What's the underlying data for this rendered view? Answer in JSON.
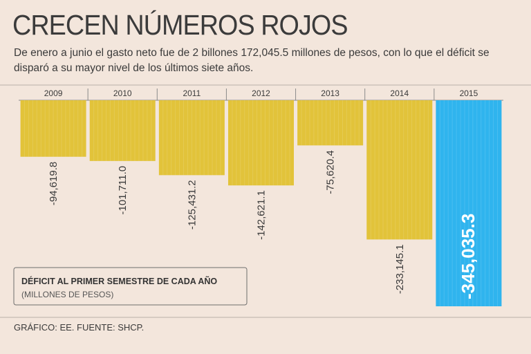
{
  "header": {
    "title": "CRECEN NÚMEROS ROJOS",
    "subtitle": "De enero a junio el gasto neto fue de 2 billones 172,045.5 millones de pesos, con lo que el déficit se disparó a su mayor nivel de los últimos siete años."
  },
  "legend": {
    "title": "DÉFICIT AL PRIMER SEMESTRE DE CADA AÑO",
    "units": "(MILLONES DE PESOS)"
  },
  "footer": {
    "source": "GRÁFICO: EE. FUENTE: SHCP."
  },
  "colors": {
    "background": "#f3e6dc",
    "bar": "#e2c33a",
    "highlight": "#2fb4ee",
    "axis": "#8a8a8a"
  },
  "chart_data": {
    "type": "bar",
    "title": "DÉFICIT AL PRIMER SEMESTRE DE CADA AÑO",
    "ylabel": "(MILLONES DE PESOS)",
    "categories": [
      "2009",
      "2010",
      "2011",
      "2012",
      "2013",
      "2014",
      "2015"
    ],
    "values": [
      -94619.8,
      -101711.0,
      -125431.2,
      -142621.1,
      -75620.4,
      -233145.1,
      -345035.3
    ],
    "labels": [
      "-94,619.8",
      "-101,711.0",
      "-125,431.2",
      "-142,621.1",
      "-75,620.4",
      "-233,145.1",
      "-345,035.3"
    ],
    "highlight_index": 6,
    "ylim": [
      -345035.3,
      0
    ]
  }
}
